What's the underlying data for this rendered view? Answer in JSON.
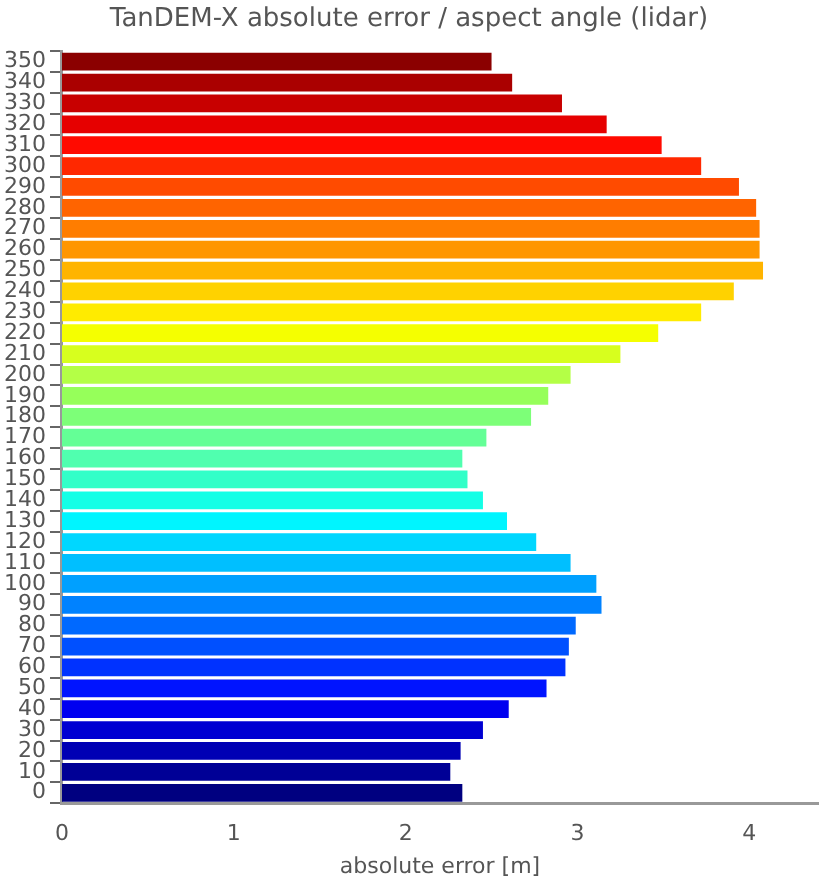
{
  "chart_data": {
    "type": "bar",
    "orientation": "horizontal",
    "title": "TanDEM-X absolute error / aspect angle (lidar)",
    "xlabel": "absolute error [m]",
    "categories": [
      "350",
      "340",
      "330",
      "320",
      "310",
      "300",
      "290",
      "280",
      "270",
      "260",
      "250",
      "240",
      "230",
      "220",
      "210",
      "200",
      "190",
      "180",
      "170",
      "160",
      "150",
      "140",
      "130",
      "120",
      "110",
      "100",
      "90",
      "80",
      "70",
      "60",
      "50",
      "40",
      "30",
      "20",
      "10",
      "0"
    ],
    "values": [
      2.5,
      2.62,
      2.91,
      3.17,
      3.49,
      3.72,
      3.94,
      4.04,
      4.06,
      4.06,
      4.08,
      3.91,
      3.72,
      3.47,
      3.25,
      2.96,
      2.83,
      2.73,
      2.47,
      2.33,
      2.36,
      2.45,
      2.59,
      2.76,
      2.96,
      3.11,
      3.14,
      2.99,
      2.95,
      2.93,
      2.82,
      2.6,
      2.45,
      2.32,
      2.26,
      2.33
    ],
    "colors": [
      "#8b0000",
      "#aa0000",
      "#c80000",
      "#e60000",
      "#ff0a00",
      "#ff2800",
      "#ff4b00",
      "#ff6400",
      "#ff7d00",
      "#ff9600",
      "#ffb400",
      "#ffd200",
      "#ffeb00",
      "#f5ff00",
      "#d7ff1e",
      "#b4ff46",
      "#96ff5a",
      "#7dff78",
      "#64ff96",
      "#50ffaf",
      "#32ffc8",
      "#14ffe6",
      "#00f5ff",
      "#00d7ff",
      "#00bfff",
      "#00a0ff",
      "#0082ff",
      "#0069ff",
      "#0050ff",
      "#0032ff",
      "#0014ff",
      "#0000f0",
      "#0000d2",
      "#0000b4",
      "#000096",
      "#000080"
    ],
    "xlim": [
      0,
      4.4
    ],
    "xticks": [
      0,
      1,
      2,
      3,
      4
    ],
    "grid": false,
    "legend": false
  }
}
